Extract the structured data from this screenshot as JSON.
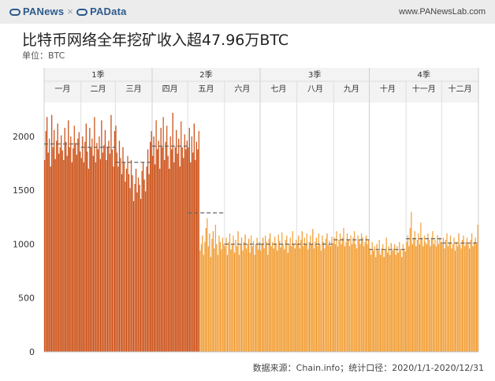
{
  "header": {
    "brand_left": "PANews",
    "brand_sep": "×",
    "brand_right": "PAData",
    "site": "www.PANewsLab.com"
  },
  "title": "比特币网络全年挖矿收入超47.96万BTC",
  "unit": "单位：BTC",
  "source": "数据来源：Chain.info；统计口径：2020/1/1-2020/12/31",
  "chart_data": {
    "type": "bar",
    "x_range": [
      "2020-01-01",
      "2020-12-31"
    ],
    "ylim": [
      0,
      2300
    ],
    "yticks": [
      0,
      500,
      1000,
      1500,
      2000
    ],
    "quarters": [
      "1季",
      "2季",
      "3季",
      "4季"
    ],
    "months": [
      "一月",
      "二月",
      "三月",
      "四月",
      "五月",
      "六月",
      "七月",
      "八月",
      "九月",
      "十月",
      "十一月",
      "十二月"
    ],
    "monthly_avg": [
      1930,
      1900,
      1760,
      1910,
      1290,
      1000,
      1000,
      1000,
      1040,
      950,
      1050,
      1010
    ],
    "series": [
      {
        "color_pre_halving": "#c9501a",
        "color_post_halving": "#f3a540",
        "halving_date": "2020-05-11"
      }
    ],
    "daily_values": [
      1780,
      2050,
      2180,
      1850,
      1980,
      1720,
      2200,
      1900,
      2060,
      1790,
      1960,
      2120,
      1840,
      1900,
      2010,
      1870,
      1780,
      2080,
      1950,
      1820,
      2150,
      1900,
      2000,
      1760,
      1890,
      2100,
      1940,
      1830,
      1980,
      2040,
      1860,
      1800,
      2000,
      1760,
      1950,
      2120,
      1860,
      1700,
      2080,
      1900,
      1980,
      1820,
      2180,
      1760,
      1940,
      1880,
      2000,
      1790,
      2150,
      1850,
      1920,
      2060,
      1780,
      1900,
      1960,
      1840,
      2200,
      1880,
      1720,
      2050,
      2100,
      1850,
      1720,
      1960,
      1800,
      1650,
      1900,
      1760,
      1580,
      1700,
      1820,
      1650,
      1520,
      1780,
      1640,
      1400,
      1560,
      1700,
      1480,
      1620,
      1550,
      1420,
      1680,
      1760,
      1600,
      1490,
      1720,
      1880,
      1650,
      1950,
      2050,
      1820,
      2000,
      1740,
      2150,
      1880,
      1960,
      1700,
      2080,
      1900,
      2180,
      1780,
      1950,
      2100,
      1820,
      1700,
      2000,
      1880,
      2220,
      1760,
      1900,
      2060,
      1840,
      1980,
      1720,
      2140,
      1900,
      1800,
      2020,
      1880,
      1960,
      1900,
      2080,
      1760,
      2000,
      1850,
      2120,
      1780,
      1950,
      1880,
      2050,
      940,
      1000,
      1080,
      900,
      1020,
      1150,
      1240,
      980,
      1100,
      880,
      1050,
      1120,
      960,
      1180,
      1000,
      900,
      1080,
      1020,
      950,
      1060,
      1000,
      980,
      1060,
      900,
      1020,
      1100,
      950,
      1000,
      1080,
      920,
      1040,
      980,
      1120,
      900,
      1000,
      1060,
      940,
      1020,
      1090,
      960,
      1000,
      1050,
      920,
      1080,
      980,
      1030,
      900,
      1000,
      1060,
      950,
      1020,
      940,
      1000,
      1060,
      960,
      1080,
      1020,
      900,
      1050,
      1100,
      980,
      1020,
      960,
      1070,
      1000,
      940,
      1090,
      1030,
      970,
      1110,
      1000,
      950,
      1040,
      1080,
      920,
      1000,
      1060,
      980,
      1120,
      1000,
      960,
      1040,
      1000,
      1080,
      960,
      1040,
      1120,
      980,
      1060,
      1000,
      1100,
      950,
      1020,
      1080,
      1000,
      1140,
      960,
      1020,
      1060,
      980,
      1100,
      1000,
      940,
      1080,
      1020,
      960,
      1050,
      1100,
      990,
      1030,
      980,
      1070,
      1010,
      1060,
      1000,
      1120,
      980,
      1040,
      1100,
      1000,
      1060,
      1150,
      980,
      1020,
      1100,
      1040,
      980,
      1080,
      1000,
      1060,
      1120,
      1000,
      960,
      1080,
      1040,
      1000,
      1100,
      1060,
      980,
      1020,
      1080,
      1000,
      1040,
      960,
      900,
      1020,
      940,
      980,
      880,
      1000,
      940,
      1040,
      900,
      960,
      1000,
      880,
      950,
      1060,
      920,
      980,
      900,
      1010,
      940,
      960,
      1000,
      900,
      980,
      920,
      1020,
      950,
      880,
      1000,
      960,
      930,
      1020,
      1080,
      980,
      1150,
      1300,
      1000,
      1060,
      1120,
      980,
      1040,
      1100,
      1000,
      1200,
      1060,
      980,
      1080,
      1020,
      1000,
      1100,
      1040,
      980,
      1060,
      1120,
      1000,
      1040,
      980,
      1080,
      1000,
      1060,
      1020,
      1000,
      1060,
      960,
      1040,
      1100,
      980,
      1020,
      1080,
      960,
      1000,
      1060,
      940,
      1020,
      980,
      1100,
      1000,
      960,
      1040,
      1080,
      980,
      1020,
      1060,
      1000,
      960,
      1040,
      1100,
      980,
      1020,
      1060,
      1000,
      1180
    ]
  }
}
